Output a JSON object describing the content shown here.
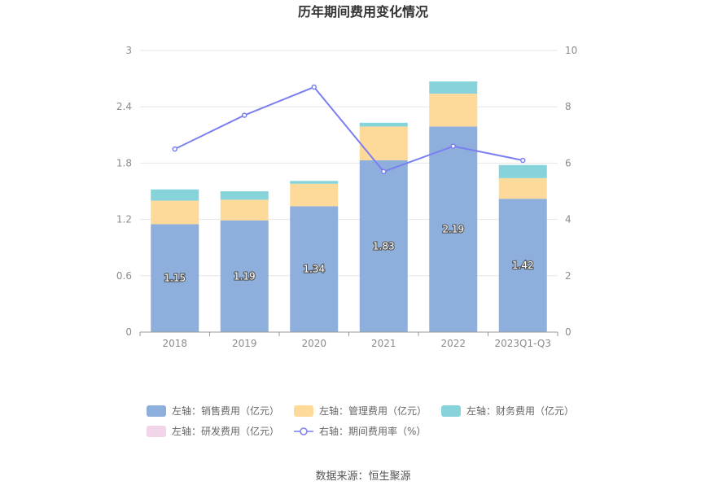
{
  "chart_data": {
    "type": "bar",
    "title": "历年期间费用变化情况",
    "categories": [
      "2018",
      "2019",
      "2020",
      "2021",
      "2022",
      "2023Q1-Q3"
    ],
    "stacked": true,
    "left_axis": {
      "ylim": [
        0,
        3
      ],
      "ticks": [
        "0",
        "0.6",
        "1.2",
        "1.8",
        "2.4",
        "3"
      ]
    },
    "right_axis": {
      "ylim": [
        0,
        10
      ],
      "ticks": [
        "0",
        "2",
        "4",
        "6",
        "8",
        "10"
      ]
    },
    "series": [
      {
        "name": "左轴：销售费用（亿元）",
        "type": "bar",
        "axis": "left",
        "color": "#8eaedb",
        "values": [
          1.15,
          1.19,
          1.34,
          1.83,
          2.19,
          1.42
        ],
        "labels": [
          "1.15",
          "1.19",
          "1.34",
          "1.83",
          "2.19",
          "1.42"
        ]
      },
      {
        "name": "左轴：管理费用（亿元）",
        "type": "bar",
        "axis": "left",
        "color": "#fdd99a",
        "values": [
          0.25,
          0.22,
          0.24,
          0.36,
          0.35,
          0.22
        ]
      },
      {
        "name": "左轴：财务费用（亿元）",
        "type": "bar",
        "axis": "left",
        "color": "#86d4d9",
        "values": [
          0.12,
          0.09,
          0.03,
          0.04,
          0.13,
          0.14
        ]
      },
      {
        "name": "左轴：研发费用（亿元）",
        "type": "bar",
        "axis": "left",
        "color": "#f2d5e8",
        "values": [
          0,
          0,
          0,
          0,
          0,
          0
        ]
      },
      {
        "name": "右轴：期间费用率（%）",
        "type": "line",
        "axis": "right",
        "color": "#7b7ff0",
        "values": [
          6.5,
          7.7,
          8.7,
          5.7,
          6.6,
          6.1
        ]
      }
    ],
    "grid": true,
    "legend_position": "bottom"
  },
  "footer": {
    "source": "数据来源：恒生聚源"
  }
}
